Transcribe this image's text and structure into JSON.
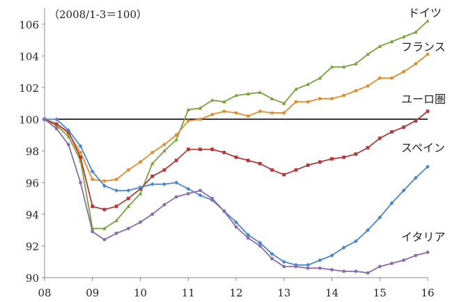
{
  "chart_data": {
    "type": "line",
    "title": "",
    "annotation": "（2008/1-3＝100）",
    "xlabel": "",
    "ylabel": "",
    "xlim": [
      0,
      8
    ],
    "ylim": [
      90,
      107
    ],
    "x_ticks": [
      {
        "value": 0,
        "label": "08"
      },
      {
        "value": 1,
        "label": "09"
      },
      {
        "value": 2,
        "label": "10"
      },
      {
        "value": 3,
        "label": "11"
      },
      {
        "value": 4,
        "label": "12"
      },
      {
        "value": 5,
        "label": "13"
      },
      {
        "value": 6,
        "label": "14"
      },
      {
        "value": 7,
        "label": "15"
      },
      {
        "value": 8,
        "label": "16"
      }
    ],
    "y_ticks": [
      90,
      92,
      94,
      96,
      98,
      100,
      102,
      104,
      106
    ],
    "reference_line": {
      "value": 100,
      "color": "#000000"
    },
    "grid": false,
    "legend": "inline labels at line ends",
    "x": [
      0,
      0.25,
      0.5,
      0.75,
      1,
      1.25,
      1.5,
      1.75,
      2,
      2.25,
      2.5,
      2.75,
      3,
      3.25,
      3.5,
      3.75,
      4,
      4.25,
      4.5,
      4.75,
      5,
      5.25,
      5.5,
      5.75,
      6,
      6.25,
      6.5,
      6.75,
      7,
      7.25,
      7.5,
      7.75,
      8
    ],
    "series": [
      {
        "name": "ドイツ",
        "color": "#78a03c",
        "marker": "triangle",
        "values": [
          100,
          99.6,
          98.9,
          97.4,
          93.1,
          93.1,
          93.6,
          94.5,
          95.3,
          97.2,
          98.0,
          98.7,
          100.6,
          100.7,
          101.2,
          101.1,
          101.5,
          101.6,
          101.7,
          101.3,
          101.0,
          101.9,
          102.2,
          102.6,
          103.3,
          103.3,
          103.5,
          104.1,
          104.6,
          104.9,
          105.2,
          105.5,
          106.2
        ]
      },
      {
        "name": "フランス",
        "color": "#e08c2c",
        "marker": "circle",
        "values": [
          100,
          99.7,
          99.1,
          97.9,
          96.2,
          96.1,
          96.2,
          96.8,
          97.3,
          97.9,
          98.4,
          99.0,
          99.9,
          100.0,
          100.3,
          100.5,
          100.4,
          100.2,
          100.5,
          100.4,
          100.4,
          101.1,
          101.1,
          101.3,
          101.3,
          101.5,
          101.8,
          102.1,
          102.6,
          102.6,
          103.0,
          103.5,
          104.1
        ]
      },
      {
        "name": "ユーロ圏",
        "color": "#b03a3a",
        "marker": "square",
        "values": [
          100,
          99.7,
          99.2,
          97.6,
          94.5,
          94.3,
          94.5,
          95.0,
          95.6,
          96.4,
          96.8,
          97.4,
          98.1,
          98.1,
          98.1,
          97.9,
          97.6,
          97.4,
          97.2,
          96.8,
          96.5,
          96.8,
          97.1,
          97.3,
          97.5,
          97.6,
          97.8,
          98.2,
          98.8,
          99.2,
          99.5,
          99.9,
          100.5
        ]
      },
      {
        "name": "スペイン",
        "color": "#4a86c8",
        "marker": "diamond",
        "values": [
          100,
          100.0,
          99.3,
          98.3,
          96.7,
          95.8,
          95.5,
          95.5,
          95.7,
          95.9,
          95.9,
          96.0,
          95.6,
          95.2,
          94.9,
          94.2,
          93.5,
          92.7,
          92.2,
          91.5,
          91.0,
          90.8,
          90.8,
          91.1,
          91.4,
          91.9,
          92.3,
          93.0,
          93.8,
          94.7,
          95.5,
          96.3,
          97.0
        ]
      },
      {
        "name": "イタリア",
        "color": "#8a6aaa",
        "marker": "circle",
        "values": [
          100,
          99.4,
          98.4,
          96.0,
          92.9,
          92.4,
          92.8,
          93.1,
          93.5,
          94.0,
          94.6,
          95.1,
          95.3,
          95.5,
          95.0,
          94.2,
          93.2,
          92.5,
          92.0,
          91.2,
          90.7,
          90.7,
          90.6,
          90.6,
          90.5,
          90.4,
          90.4,
          90.3,
          90.7,
          90.9,
          91.1,
          91.4,
          91.6
        ]
      }
    ]
  }
}
